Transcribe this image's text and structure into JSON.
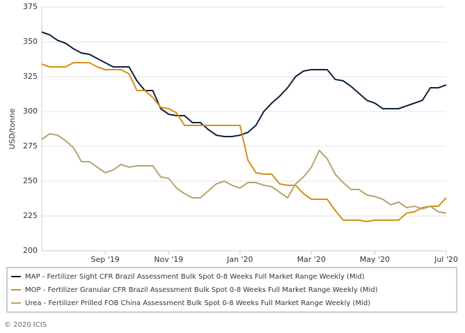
{
  "chart_data": {
    "type": "line",
    "y_label": "USD/tonne",
    "categories": [
      null,
      null,
      null,
      null,
      null,
      null,
      null,
      null,
      "Sep '19",
      null,
      null,
      null,
      null,
      null,
      null,
      null,
      "Nov '19",
      null,
      null,
      null,
      null,
      null,
      null,
      null,
      null,
      "Jan '20",
      null,
      null,
      null,
      null,
      null,
      null,
      null,
      null,
      "Mar '20",
      null,
      null,
      null,
      null,
      null,
      null,
      null,
      "May '20",
      null,
      null,
      null,
      null,
      null,
      null,
      null,
      null,
      "Jul '20"
    ],
    "series": [
      {
        "name": "MAP - Fertilizer Sight CFR Brazil Assessment Bulk Spot 0-8 Weeks Full Market Range Weekly (Mid)",
        "color": "#0d1f3c",
        "values": [
          357,
          355,
          351,
          349,
          345,
          342,
          341,
          338,
          335,
          332,
          332,
          332,
          322,
          315,
          315,
          302,
          298,
          297,
          297,
          292,
          292,
          287,
          283,
          282,
          282,
          283,
          285,
          290,
          300,
          306,
          311,
          317,
          325,
          329,
          330,
          330,
          330,
          323,
          322,
          318,
          313,
          308,
          306,
          302,
          302,
          302,
          304,
          306,
          308,
          317,
          317,
          319
        ]
      },
      {
        "name": "MOP - Fertilizer Granular CFR Brazil Assessment Bulk Spot 0-8 Weeks Full Market Range Weekly (Mid)",
        "color": "#d4900e",
        "values": [
          334,
          332,
          332,
          332,
          335,
          335,
          335,
          332,
          330,
          330,
          330,
          327,
          315,
          315,
          310,
          303,
          302,
          299,
          290,
          290,
          290,
          290,
          290,
          290,
          290,
          290,
          265,
          256,
          255,
          255,
          248,
          247,
          247,
          241,
          237,
          237,
          237,
          229,
          222,
          222,
          222,
          221,
          222,
          222,
          222,
          222,
          227,
          228,
          231,
          232,
          232,
          238
        ]
      },
      {
        "name": "Urea - Fertilizer Prilled FOB China Assessment Bulk Spot 0-8 Weeks Full Market Range Weekly (Mid)",
        "color": "#b5a46b",
        "values": [
          280,
          284,
          283,
          279,
          274,
          264,
          264,
          260,
          256,
          258,
          262,
          260,
          261,
          261,
          261,
          253,
          252,
          245,
          241,
          238,
          238,
          243,
          248,
          250,
          247,
          245,
          249,
          249,
          247,
          246,
          242,
          238,
          248,
          253,
          260,
          272,
          266,
          255,
          249,
          244,
          244,
          240,
          239,
          237,
          233,
          235,
          231,
          232,
          230,
          232,
          228,
          227
        ]
      }
    ],
    "ylim": [
      200,
      375
    ],
    "yticks": [
      200,
      225,
      250,
      275,
      300,
      325,
      350,
      375
    ],
    "grid": true,
    "copyright": "© 2020 ICIS"
  }
}
